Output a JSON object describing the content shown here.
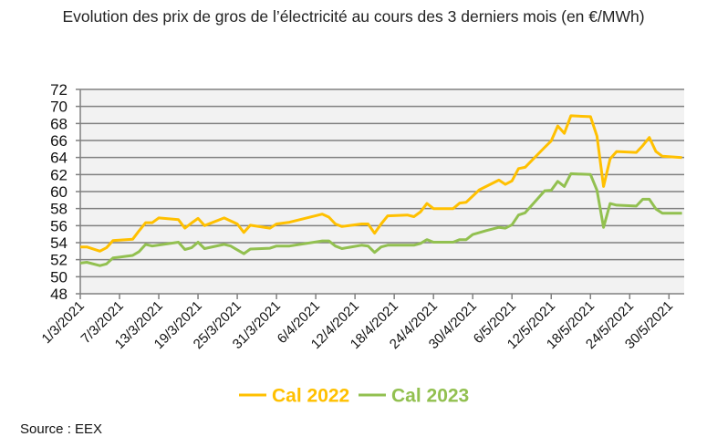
{
  "chart_data": {
    "type": "line",
    "title": "Evolution des prix de gros de l’électricité au cours des 3 derniers mois (en €/MWh)",
    "xlabel": "",
    "ylabel": "",
    "ylim": [
      48,
      72
    ],
    "yticks": [
      48,
      50,
      52,
      54,
      56,
      58,
      60,
      62,
      64,
      66,
      68,
      70,
      72
    ],
    "xlim": [
      "1/3/2021",
      "1/6/2021"
    ],
    "xtick_labels": [
      "1/3/2021",
      "7/3/2021",
      "13/3/2021",
      "19/3/2021",
      "25/3/2021",
      "31/3/2021",
      "6/4/2021",
      "12/4/2021",
      "18/4/2021",
      "24/4/2021",
      "30/4/2021",
      "6/5/2021",
      "12/5/2021",
      "18/5/2021",
      "24/5/2021",
      "30/5/2021"
    ],
    "grid": true,
    "plot_background": "#F2F2F2",
    "legend_position": "bottom",
    "series": [
      {
        "name": "Cal 2022",
        "color": "#FFC000",
        "points": [
          [
            "1/3/2021",
            53.5
          ],
          [
            "2/3/2021",
            53.5
          ],
          [
            "4/3/2021",
            53.0
          ],
          [
            "5/3/2021",
            53.4
          ],
          [
            "6/3/2021",
            54.25
          ],
          [
            "9/3/2021",
            54.4
          ],
          [
            "10/3/2021",
            55.4
          ],
          [
            "11/3/2021",
            56.35
          ],
          [
            "12/3/2021",
            56.35
          ],
          [
            "13/3/2021",
            56.9
          ],
          [
            "16/3/2021",
            56.7
          ],
          [
            "17/3/2021",
            55.7
          ],
          [
            "18/3/2021",
            56.3
          ],
          [
            "19/3/2021",
            56.85
          ],
          [
            "20/3/2021",
            56.0
          ],
          [
            "23/3/2021",
            56.9
          ],
          [
            "25/3/2021",
            56.2
          ],
          [
            "26/3/2021",
            55.2
          ],
          [
            "27/3/2021",
            56.05
          ],
          [
            "30/3/2021",
            55.7
          ],
          [
            "31/3/2021",
            56.2
          ],
          [
            "2/4/2021",
            56.4
          ],
          [
            "7/4/2021",
            57.35
          ],
          [
            "8/4/2021",
            57.0
          ],
          [
            "9/4/2021",
            56.2
          ],
          [
            "10/4/2021",
            55.9
          ],
          [
            "13/4/2021",
            56.2
          ],
          [
            "14/4/2021",
            56.2
          ],
          [
            "15/4/2021",
            55.1
          ],
          [
            "16/4/2021",
            56.2
          ],
          [
            "17/4/2021",
            57.15
          ],
          [
            "20/4/2021",
            57.25
          ],
          [
            "21/4/2021",
            57.05
          ],
          [
            "22/4/2021",
            57.6
          ],
          [
            "23/4/2021",
            58.6
          ],
          [
            "24/4/2021",
            58.0
          ],
          [
            "27/4/2021",
            58.0
          ],
          [
            "28/4/2021",
            58.65
          ],
          [
            "29/4/2021",
            58.75
          ],
          [
            "1/5/2021",
            60.2
          ],
          [
            "4/5/2021",
            61.35
          ],
          [
            "5/5/2021",
            60.85
          ],
          [
            "6/5/2021",
            61.25
          ],
          [
            "7/5/2021",
            62.7
          ],
          [
            "8/5/2021",
            62.85
          ],
          [
            "11/5/2021",
            65.2
          ],
          [
            "12/5/2021",
            65.95
          ],
          [
            "13/5/2021",
            67.7
          ],
          [
            "14/5/2021",
            66.85
          ],
          [
            "15/5/2021",
            68.9
          ],
          [
            "18/5/2021",
            68.8
          ],
          [
            "19/5/2021",
            66.5
          ],
          [
            "20/5/2021",
            60.6
          ],
          [
            "21/5/2021",
            63.85
          ],
          [
            "22/5/2021",
            64.7
          ],
          [
            "25/5/2021",
            64.6
          ],
          [
            "26/5/2021",
            65.4
          ],
          [
            "27/5/2021",
            66.35
          ],
          [
            "28/5/2021",
            64.7
          ],
          [
            "29/5/2021",
            64.15
          ],
          [
            "1/6/2021",
            64.0
          ]
        ]
      },
      {
        "name": "Cal 2023",
        "color": "#92C050",
        "points": [
          [
            "1/3/2021",
            51.6
          ],
          [
            "2/3/2021",
            51.7
          ],
          [
            "4/3/2021",
            51.3
          ],
          [
            "5/3/2021",
            51.5
          ],
          [
            "6/3/2021",
            52.2
          ],
          [
            "9/3/2021",
            52.5
          ],
          [
            "10/3/2021",
            52.95
          ],
          [
            "11/3/2021",
            53.8
          ],
          [
            "12/3/2021",
            53.6
          ],
          [
            "16/3/2021",
            54.05
          ],
          [
            "17/3/2021",
            53.2
          ],
          [
            "18/3/2021",
            53.4
          ],
          [
            "19/3/2021",
            54.05
          ],
          [
            "20/3/2021",
            53.3
          ],
          [
            "23/3/2021",
            53.8
          ],
          [
            "24/3/2021",
            53.6
          ],
          [
            "26/3/2021",
            52.7
          ],
          [
            "27/3/2021",
            53.25
          ],
          [
            "30/3/2021",
            53.35
          ],
          [
            "31/3/2021",
            53.6
          ],
          [
            "2/4/2021",
            53.6
          ],
          [
            "7/4/2021",
            54.2
          ],
          [
            "8/4/2021",
            54.2
          ],
          [
            "9/4/2021",
            53.6
          ],
          [
            "10/4/2021",
            53.3
          ],
          [
            "13/4/2021",
            53.7
          ],
          [
            "14/4/2021",
            53.6
          ],
          [
            "15/4/2021",
            52.85
          ],
          [
            "16/4/2021",
            53.5
          ],
          [
            "17/4/2021",
            53.7
          ],
          [
            "21/4/2021",
            53.7
          ],
          [
            "22/4/2021",
            53.9
          ],
          [
            "23/4/2021",
            54.35
          ],
          [
            "24/4/2021",
            54.05
          ],
          [
            "27/4/2021",
            54.05
          ],
          [
            "28/4/2021",
            54.35
          ],
          [
            "29/4/2021",
            54.35
          ],
          [
            "30/4/2021",
            54.95
          ],
          [
            "2/5/2021",
            55.4
          ],
          [
            "4/5/2021",
            55.8
          ],
          [
            "5/5/2021",
            55.7
          ],
          [
            "6/5/2021",
            56.1
          ],
          [
            "7/5/2021",
            57.25
          ],
          [
            "8/5/2021",
            57.5
          ],
          [
            "11/5/2021",
            60.1
          ],
          [
            "12/5/2021",
            60.15
          ],
          [
            "13/5/2021",
            61.2
          ],
          [
            "14/5/2021",
            60.6
          ],
          [
            "15/5/2021",
            62.1
          ],
          [
            "18/5/2021",
            62.0
          ],
          [
            "19/5/2021",
            60.15
          ],
          [
            "20/5/2021",
            55.8
          ],
          [
            "21/5/2021",
            58.6
          ],
          [
            "22/5/2021",
            58.4
          ],
          [
            "25/5/2021",
            58.3
          ],
          [
            "26/5/2021",
            59.1
          ],
          [
            "27/5/2021",
            59.1
          ],
          [
            "28/5/2021",
            57.95
          ],
          [
            "29/5/2021",
            57.45
          ],
          [
            "1/6/2021",
            57.45
          ]
        ]
      }
    ]
  },
  "source": "Source : EEX"
}
